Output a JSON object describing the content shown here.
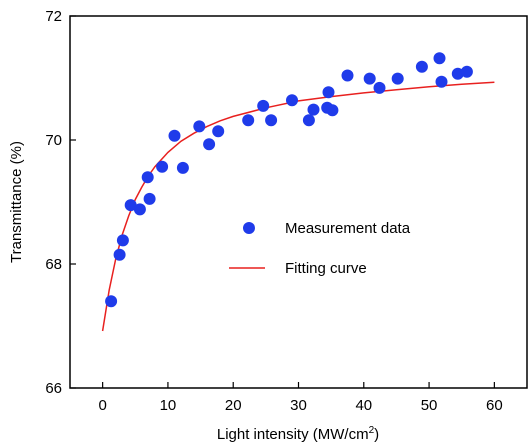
{
  "chart_data": {
    "type": "scatter",
    "xlabel_main": "Light intensity (MW/cm",
    "xlabel_sup": "2",
    "xlabel_close": ")",
    "ylabel": "Transmittance (%)",
    "xlim": [
      -5,
      65
    ],
    "ylim": [
      66,
      72
    ],
    "xticks": [
      0,
      10,
      20,
      30,
      40,
      50,
      60
    ],
    "yticks": [
      66,
      68,
      70,
      72
    ],
    "legend_placement": "center-right",
    "colors": {
      "measurement": "#1f3bea",
      "fit": "#e8201f",
      "axis": "#000000"
    },
    "series": [
      {
        "name": "Measurement data",
        "kind": "scatter",
        "x": [
          1.3,
          2.6,
          3.1,
          4.3,
          5.7,
          6.9,
          7.2,
          9.1,
          11.0,
          12.3,
          14.8,
          16.3,
          17.7,
          22.3,
          24.6,
          25.8,
          29.0,
          31.6,
          32.3,
          34.4,
          34.6,
          35.2,
          37.5,
          40.9,
          42.4,
          45.2,
          48.9,
          51.6,
          51.9,
          54.4,
          55.8
        ],
        "y": [
          67.4,
          68.15,
          68.38,
          68.95,
          68.88,
          69.4,
          69.05,
          69.57,
          70.07,
          69.55,
          70.22,
          69.93,
          70.14,
          70.32,
          70.55,
          70.32,
          70.64,
          70.32,
          70.49,
          70.52,
          70.77,
          70.48,
          71.04,
          70.99,
          70.84,
          70.99,
          71.18,
          71.32,
          70.94,
          71.07,
          71.1
        ]
      },
      {
        "name": "Fitting curve",
        "kind": "line",
        "x": [
          0,
          1,
          2,
          3,
          4,
          5,
          6,
          7,
          8,
          10,
          12,
          14,
          16,
          18,
          20,
          25,
          30,
          35,
          40,
          45,
          50,
          55,
          60
        ],
        "y": [
          66.92,
          67.58,
          68.08,
          68.47,
          68.78,
          69.04,
          69.24,
          69.42,
          69.57,
          69.8,
          69.98,
          70.11,
          70.22,
          70.31,
          70.38,
          70.52,
          70.63,
          70.7,
          70.76,
          70.81,
          70.86,
          70.9,
          70.93
        ]
      }
    ]
  }
}
